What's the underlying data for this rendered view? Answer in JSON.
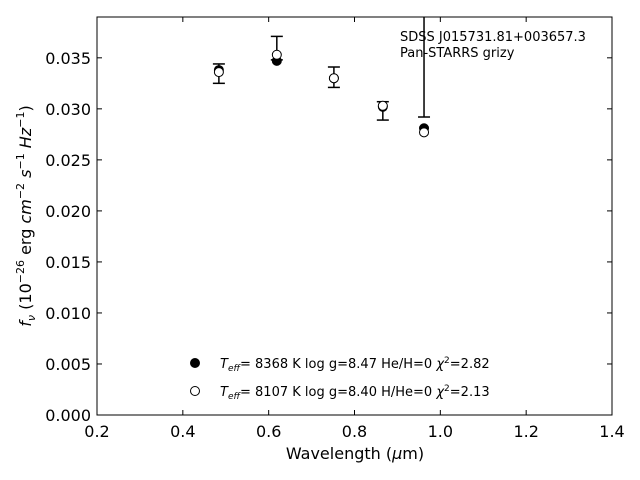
{
  "chart_data": {
    "type": "scatter",
    "xlabel": "Wavelength (μm)",
    "ylabel": "f_ν (10^-26 erg cm^-2 s^-1 Hz^-1)",
    "xlim": [
      0.2,
      1.4
    ],
    "ylim": [
      0.0,
      0.039
    ],
    "xticks": [
      "0.2",
      "0.4",
      "0.6",
      "0.8",
      "1.0",
      "1.2",
      "1.4"
    ],
    "yticks": [
      "0.000",
      "0.005",
      "0.010",
      "0.015",
      "0.020",
      "0.025",
      "0.030",
      "0.035"
    ],
    "annotations": [
      "SDSS J015731.81+003657.3",
      "Pan-STARRS grizy"
    ],
    "observed": {
      "x": [
        0.484,
        0.619,
        0.752,
        0.866,
        0.962
      ],
      "y": [
        0.0339,
        0.0348,
        0.0331,
        0.0303,
        0.0281
      ],
      "yerr_low": [
        0.0325,
        0.0348,
        0.0321,
        0.0289,
        0.0292
      ],
      "yerr_high": [
        0.0344,
        0.0371,
        0.0341,
        0.0307,
        0.0392
      ]
    },
    "series": [
      {
        "name": "Teff= 8368 K  log g=8.47  He/H=0  χ²=2.82",
        "marker": "filled",
        "x": [
          0.484,
          0.619,
          0.752,
          0.866,
          0.962
        ],
        "y": [
          0.0338,
          0.0347,
          0.033,
          0.0302,
          0.0281
        ]
      },
      {
        "name": "Teff= 8107 K  log g=8.40  H/He=0  χ²=2.13",
        "marker": "open",
        "x": [
          0.484,
          0.619,
          0.752,
          0.866,
          0.962
        ],
        "y": [
          0.0336,
          0.0353,
          0.033,
          0.0303,
          0.0277
        ]
      }
    ],
    "legend": [
      {
        "teff_val": "8368 K",
        "logg": "log g=8.47",
        "comp": "He/H=0",
        "chi_val": "=2.82"
      },
      {
        "teff_val": "8107 K",
        "logg": "log g=8.40",
        "comp": "H/He=0",
        "chi_val": "=2.13"
      }
    ],
    "legend_position": "lower-center",
    "grid": false
  }
}
